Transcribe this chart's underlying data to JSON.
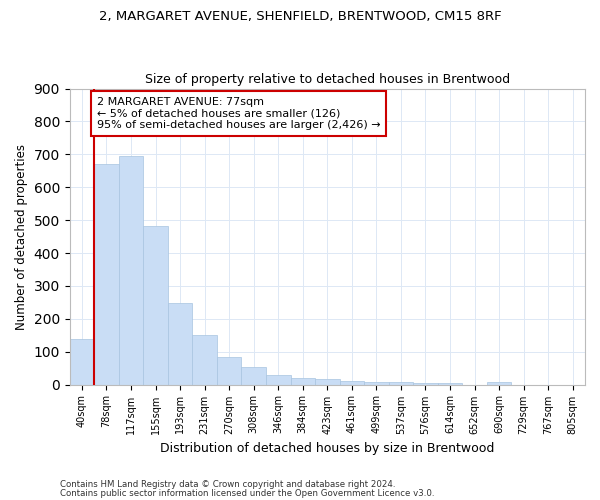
{
  "title1": "2, MARGARET AVENUE, SHENFIELD, BRENTWOOD, CM15 8RF",
  "title2": "Size of property relative to detached houses in Brentwood",
  "xlabel": "Distribution of detached houses by size in Brentwood",
  "ylabel": "Number of detached properties",
  "categories": [
    "40sqm",
    "78sqm",
    "117sqm",
    "155sqm",
    "193sqm",
    "231sqm",
    "270sqm",
    "308sqm",
    "346sqm",
    "384sqm",
    "423sqm",
    "461sqm",
    "499sqm",
    "537sqm",
    "576sqm",
    "614sqm",
    "652sqm",
    "690sqm",
    "729sqm",
    "767sqm",
    "805sqm"
  ],
  "values": [
    140,
    670,
    695,
    483,
    248,
    150,
    85,
    52,
    28,
    20,
    18,
    12,
    8,
    7,
    5,
    5,
    0,
    8,
    0,
    0,
    0
  ],
  "bar_color": "#c9ddf5",
  "bar_edge_color": "#a8c4e0",
  "annotation_text": "2 MARGARET AVENUE: 77sqm\n← 5% of detached houses are smaller (126)\n95% of semi-detached houses are larger (2,426) →",
  "annotation_box_color": "#ffffff",
  "annotation_box_edge": "#cc0000",
  "vline_color": "#cc0000",
  "ylim": [
    0,
    900
  ],
  "yticks": [
    0,
    100,
    200,
    300,
    400,
    500,
    600,
    700,
    800,
    900
  ],
  "background_color": "#ffffff",
  "grid_color": "#dde8f5",
  "footnote1": "Contains HM Land Registry data © Crown copyright and database right 2024.",
  "footnote2": "Contains public sector information licensed under the Open Government Licence v3.0."
}
